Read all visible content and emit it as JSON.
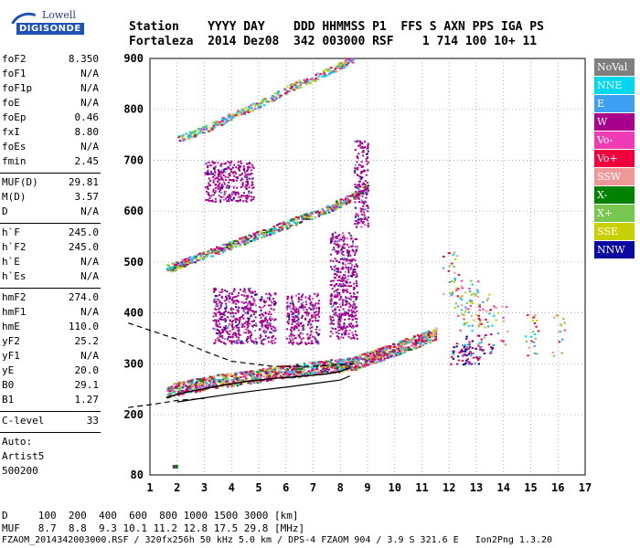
{
  "logo": {
    "brand_top": "Lowell",
    "brand_bottom": "DIGISONDE"
  },
  "header": {
    "line1": "Station    YYYY DAY    DDD HHMMSS P1  FFS S AXN PPS IGA PS",
    "line2": "Fortaleza  2014 Dez08  342 003000 RSF    1 714 100 10+ 11"
  },
  "params": {
    "group1": [
      {
        "key": "foF2",
        "value": "8.350"
      },
      {
        "key": "foF1",
        "value": "N/A"
      },
      {
        "key": "foF1p",
        "value": "N/A"
      },
      {
        "key": "foE",
        "value": "N/A"
      },
      {
        "key": "foEp",
        "value": "0.46"
      },
      {
        "key": "fxI",
        "value": "8.80"
      },
      {
        "key": "foEs",
        "value": "N/A"
      },
      {
        "key": "fmin",
        "value": "2.45"
      }
    ],
    "group2": [
      {
        "key": "MUF(D)",
        "value": "29.81"
      },
      {
        "key": "M(D)",
        "value": "3.57"
      },
      {
        "key": "D",
        "value": "N/A"
      }
    ],
    "group3": [
      {
        "key": "h`F",
        "value": "245.0"
      },
      {
        "key": "h`F2",
        "value": "245.0"
      },
      {
        "key": "h`E",
        "value": "N/A"
      },
      {
        "key": "h`Es",
        "value": "N/A"
      }
    ],
    "group4": [
      {
        "key": "hmF2",
        "value": "274.0"
      },
      {
        "key": "hmF1",
        "value": "N/A"
      },
      {
        "key": "hmE",
        "value": "110.0"
      },
      {
        "key": "yF2",
        "value": "25.2"
      },
      {
        "key": "yF1",
        "value": "N/A"
      },
      {
        "key": "yE",
        "value": "20.0"
      },
      {
        "key": "B0",
        "value": "29.1"
      },
      {
        "key": "B1",
        "value": "1.27"
      }
    ],
    "clevel": {
      "key": "C-level",
      "value": "33"
    },
    "auto": [
      "Auto:",
      "Artist5",
      "500200"
    ]
  },
  "legend": [
    {
      "label": "NoVal",
      "color": "#7f7f7f"
    },
    {
      "label": "NNE",
      "color": "#00d8f0"
    },
    {
      "label": "E",
      "color": "#3ea0f0"
    },
    {
      "label": "W",
      "color": "#a8008c"
    },
    {
      "label": "Vo-",
      "color": "#f03cb4"
    },
    {
      "label": "Vo+",
      "color": "#f0003c"
    },
    {
      "label": "SSW",
      "color": "#f09898"
    },
    {
      "label": "X-",
      "color": "#008200"
    },
    {
      "label": "X+",
      "color": "#78c850"
    },
    {
      "label": "SSE",
      "color": "#c8d000"
    },
    {
      "label": "NNW",
      "color": "#0a0aa0"
    }
  ],
  "footer": {
    "d_row": "D     100  200  400  600  800 1000 1500 3000 [km]",
    "muf_row": "MUF   8.7  8.8  9.3 10.1 11.2 12.8 17.5 29.8 [MHz]",
    "file_row": "FZAOM_2014342003000.RSF / 320fx256h 50 kHz 5.0 km / DPS-4 FZAOM 904 / 3.9 S 321.6 E   Ion2Png 1.3.20"
  },
  "chart_data": {
    "type": "scatter",
    "xlim": [
      1,
      17
    ],
    "ylim": [
      80,
      900
    ],
    "x_ticks": [
      1,
      2,
      3,
      4,
      5,
      6,
      7,
      8,
      9,
      10,
      11,
      12,
      13,
      14,
      15,
      16,
      17
    ],
    "y_ticks": [
      80,
      200,
      300,
      400,
      500,
      600,
      700,
      800,
      900
    ],
    "grid": true,
    "legend_position": "right",
    "traces": {
      "o_trace": {
        "x": [
          1.6,
          2.0,
          2.5,
          3.0,
          3.5,
          4.0,
          4.5,
          5.0,
          5.5,
          6.0,
          6.5,
          7.0,
          7.5,
          8.0,
          8.5,
          9.0,
          9.5,
          10.0,
          10.5,
          11.0,
          11.5
        ],
        "y": [
          248,
          252,
          258,
          262,
          268,
          270,
          274,
          278,
          282,
          285,
          288,
          292,
          296,
          298,
          302,
          312,
          320,
          330,
          340,
          350,
          360
        ]
      },
      "second_hop": {
        "x": [
          1.6,
          2.0,
          2.5,
          3.0,
          3.5,
          4.0,
          4.5,
          5.0,
          5.5,
          6.0,
          6.5,
          7.0,
          7.5,
          8.0,
          8.5,
          9.0
        ],
        "y": [
          488,
          495,
          505,
          515,
          525,
          535,
          545,
          555,
          565,
          575,
          585,
          595,
          605,
          618,
          632,
          648
        ]
      },
      "third_hop": {
        "x": [
          2.0,
          2.5,
          3.0,
          3.5,
          4.0,
          4.5,
          5.0,
          5.5,
          6.0,
          6.5,
          7.0,
          7.5,
          8.0,
          8.5
        ],
        "y": [
          742,
          752,
          762,
          775,
          788,
          800,
          812,
          825,
          840,
          852,
          862,
          875,
          888,
          900
        ]
      },
      "spread_blobs": [
        {
          "x": [
            3.3,
            4.9
          ],
          "y": [
            340,
            450
          ]
        },
        {
          "x": [
            5.0,
            5.6
          ],
          "y": [
            340,
            440
          ]
        },
        {
          "x": [
            6.0,
            7.2
          ],
          "y": [
            340,
            440
          ]
        },
        {
          "x": [
            7.6,
            8.6
          ],
          "y": [
            350,
            560
          ]
        },
        {
          "x": [
            3.0,
            4.8
          ],
          "y": [
            620,
            700
          ]
        },
        {
          "x": [
            8.5,
            9.0
          ],
          "y": [
            570,
            740
          ]
        }
      ],
      "high_freq_cluster": {
        "x": [
          12.0,
          12.3,
          12.6,
          12.9,
          13.2,
          13.5,
          14.0,
          15.0,
          16.0
        ],
        "y": [
          480,
          440,
          400,
          420,
          400,
          380,
          370,
          360,
          355
        ]
      },
      "low_freq_cluster": {
        "x": [
          12.3,
          12.5,
          12.8,
          13.0,
          13.3
        ],
        "y": [
          320,
          335,
          320,
          330,
          340
        ]
      }
    },
    "profile_curve": {
      "x": [
        1.6,
        2.0,
        2.6,
        3.5,
        4.5,
        5.5,
        6.5,
        7.5,
        8.0,
        8.35
      ],
      "y": [
        233,
        240,
        247,
        256,
        265,
        271,
        275,
        280,
        285,
        292
      ]
    },
    "model_curve": {
      "x": [
        2.0,
        3.0,
        4.0,
        5.0,
        6.0,
        7.0,
        8.0,
        8.35
      ],
      "y": [
        225,
        233,
        241,
        248,
        254,
        261,
        268,
        276
      ]
    },
    "dashed_lines": [
      {
        "x": [
          0.2,
          2.0,
          3.0,
          4.0,
          5.5,
          7.0,
          8.5
        ],
        "y": [
          380,
          348,
          325,
          305,
          295,
          295,
          300
        ]
      },
      {
        "x": [
          0.2,
          1.2,
          2.0,
          3.0
        ],
        "y": [
          214,
          221,
          228,
          232
        ]
      }
    ],
    "low_point": {
      "x": 1.9,
      "y": 100
    }
  }
}
